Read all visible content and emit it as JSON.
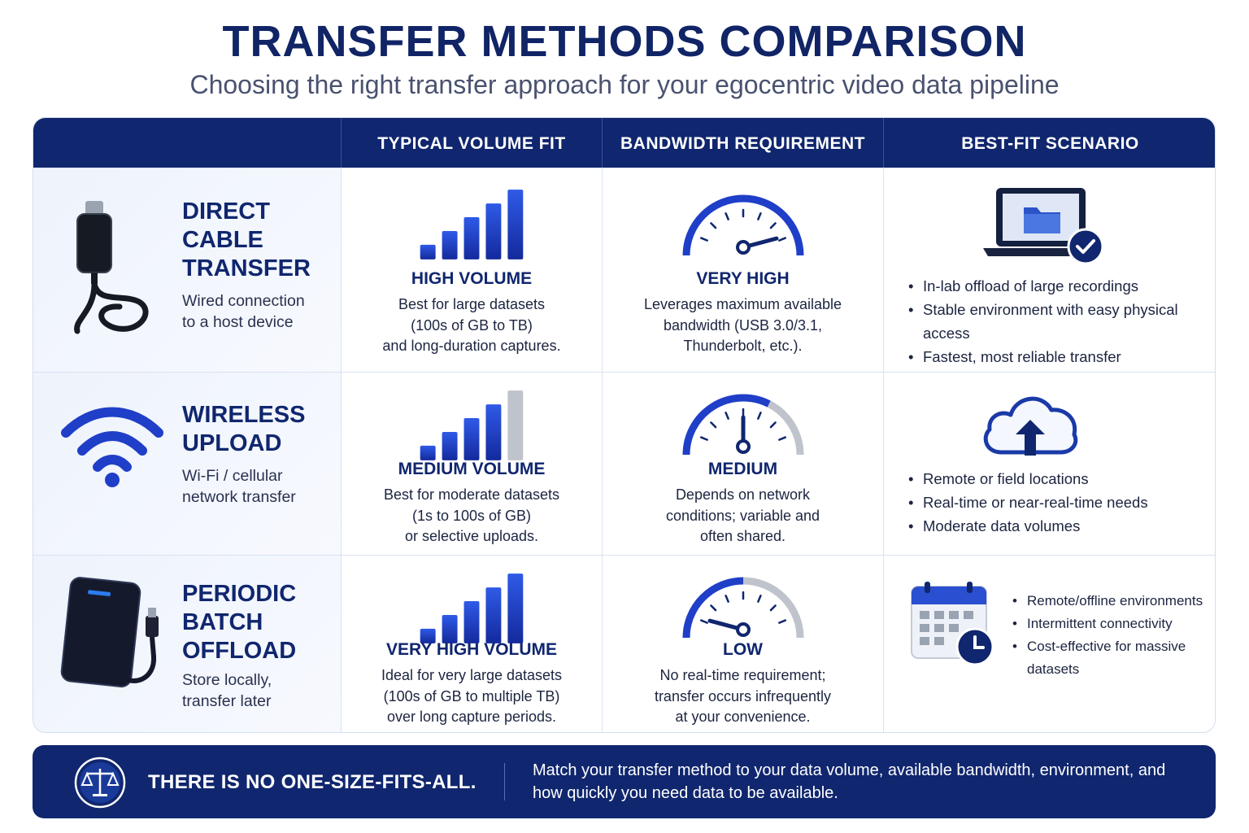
{
  "header": {
    "title": "TRANSFER METHODS COMPARISON",
    "subtitle": "Choosing the right transfer approach for your egocentric video data pipeline"
  },
  "columns": [
    "",
    "TYPICAL VOLUME FIT",
    "BANDWIDTH REQUIREMENT",
    "BEST-FIT SCENARIO"
  ],
  "rows": [
    {
      "method_name": "DIRECT\nCABLE\nTRANSFER",
      "method_desc": "Wired connection\nto a host device",
      "method_icon": "usb-cable-icon",
      "volume": {
        "level": 5,
        "of": 5,
        "title": "HIGH VOLUME",
        "text": "Best for large datasets\n(100s of GB to TB)\nand long-duration captures."
      },
      "bandwidth": {
        "level_fraction": 0.85,
        "title": "VERY HIGH",
        "text": "Leverages maximum available\nbandwidth (USB 3.0/3.1,\nThunderbolt, etc.)."
      },
      "scenario": {
        "icon": "laptop-folder-check-icon",
        "bullets": [
          "In-lab offload of large recordings",
          "Stable environment with easy physical access",
          "Fastest, most reliable transfer"
        ]
      }
    },
    {
      "method_name": "WIRELESS\nUPLOAD",
      "method_desc": "Wi-Fi / cellular\nnetwork transfer",
      "method_icon": "wifi-icon",
      "volume": {
        "level": 4,
        "of": 5,
        "title": "MEDIUM VOLUME",
        "text": "Best for moderate datasets\n(1s to 100s of GB)\nor selective uploads."
      },
      "bandwidth": {
        "level_fraction": 0.5,
        "title": "MEDIUM",
        "text": "Depends on network\nconditions; variable and\noften shared."
      },
      "scenario": {
        "icon": "cloud-upload-icon",
        "bullets": [
          "Remote or field locations",
          "Real-time or near-real-time needs",
          "Moderate data volumes"
        ]
      }
    },
    {
      "method_name": "PERIODIC\nBATCH\nOFFLOAD",
      "method_desc": "Store locally,\ntransfer later",
      "method_icon": "external-drive-icon",
      "volume": {
        "level": 5,
        "of": 5,
        "title": "VERY HIGH VOLUME",
        "text": "Ideal for very large datasets\n(100s of GB to multiple TB)\nover long capture periods."
      },
      "bandwidth": {
        "level_fraction": 0.15,
        "title": "LOW",
        "text": "No real-time requirement;\ntransfer occurs infrequently\nat your convenience."
      },
      "scenario": {
        "icon": "calendar-clock-icon",
        "bullets": [
          "Remote/offline environments",
          "Intermittent connectivity",
          "Cost-effective for massive datasets"
        ]
      }
    }
  ],
  "footer": {
    "icon": "balance-scale-icon",
    "tagline": "THERE IS NO ONE-SIZE-FITS-ALL.",
    "text": "Match your transfer method to your data volume, available bandwidth, environment, and how quickly you need data to be available."
  },
  "colors": {
    "navy": "#10266e",
    "blue": "#1f3fc8",
    "grey": "#bfc4cc"
  }
}
